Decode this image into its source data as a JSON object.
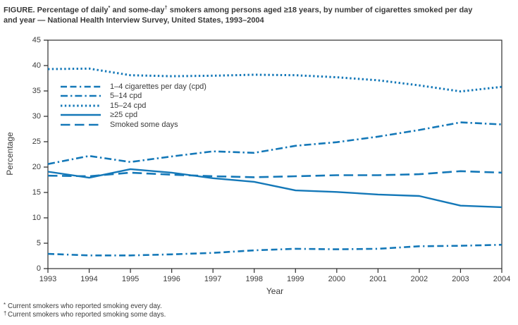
{
  "header": {
    "line1_prefix": "FIGURE. Percentage of daily",
    "line1_star": "*",
    "line1_mid": " and some-day",
    "line1_dagger": "†",
    "line1_suffix": " smokers among persons aged ≥18 years, by number of cigarettes smoked per day",
    "line2": "and year — National Health Interview Survey, United States, 1993–2004"
  },
  "chart_data": {
    "type": "line",
    "x": [
      1993,
      1994,
      1995,
      1996,
      1997,
      1998,
      1999,
      2000,
      2001,
      2002,
      2003,
      2004
    ],
    "series": [
      {
        "name": "1–4 cigarettes per day (cpd)",
        "style": "dash-dash-dot",
        "values": [
          2.9,
          2.6,
          2.6,
          2.8,
          3.1,
          3.6,
          3.9,
          3.8,
          3.9,
          4.4,
          4.5,
          4.7
        ]
      },
      {
        "name": "5–14 cpd",
        "style": "dash-dot",
        "values": [
          20.6,
          22.2,
          21.0,
          22.1,
          23.1,
          22.8,
          24.2,
          24.9,
          26.0,
          27.3,
          28.8,
          28.4
        ]
      },
      {
        "name": "15–24 cpd",
        "style": "dot",
        "values": [
          39.3,
          39.4,
          38.1,
          37.9,
          38.0,
          38.2,
          38.1,
          37.7,
          37.1,
          36.1,
          34.9,
          35.8
        ]
      },
      {
        "name": "≥25 cpd",
        "style": "solid",
        "values": [
          19.1,
          17.9,
          19.6,
          18.9,
          17.8,
          17.1,
          15.4,
          15.1,
          14.6,
          14.3,
          12.4,
          12.1
        ]
      },
      {
        "name": "Smoked some days",
        "style": "long-dash",
        "values": [
          18.3,
          18.2,
          18.9,
          18.5,
          18.2,
          18.0,
          18.2,
          18.4,
          18.4,
          18.6,
          19.2,
          18.9
        ]
      }
    ],
    "title": "",
    "xlabel": "Year",
    "ylabel": "Percentage",
    "ylim": [
      0,
      45
    ],
    "ytick_step": 5,
    "line_color": "#1478b8",
    "axis_color": "#2e2e2e",
    "grid": false,
    "legend_position": "upper-left-inside"
  },
  "footnotes": [
    {
      "marker": "*",
      "text": "Current smokers who reported smoking every day."
    },
    {
      "marker": "†",
      "text": "Current smokers who reported smoking some days."
    }
  ]
}
